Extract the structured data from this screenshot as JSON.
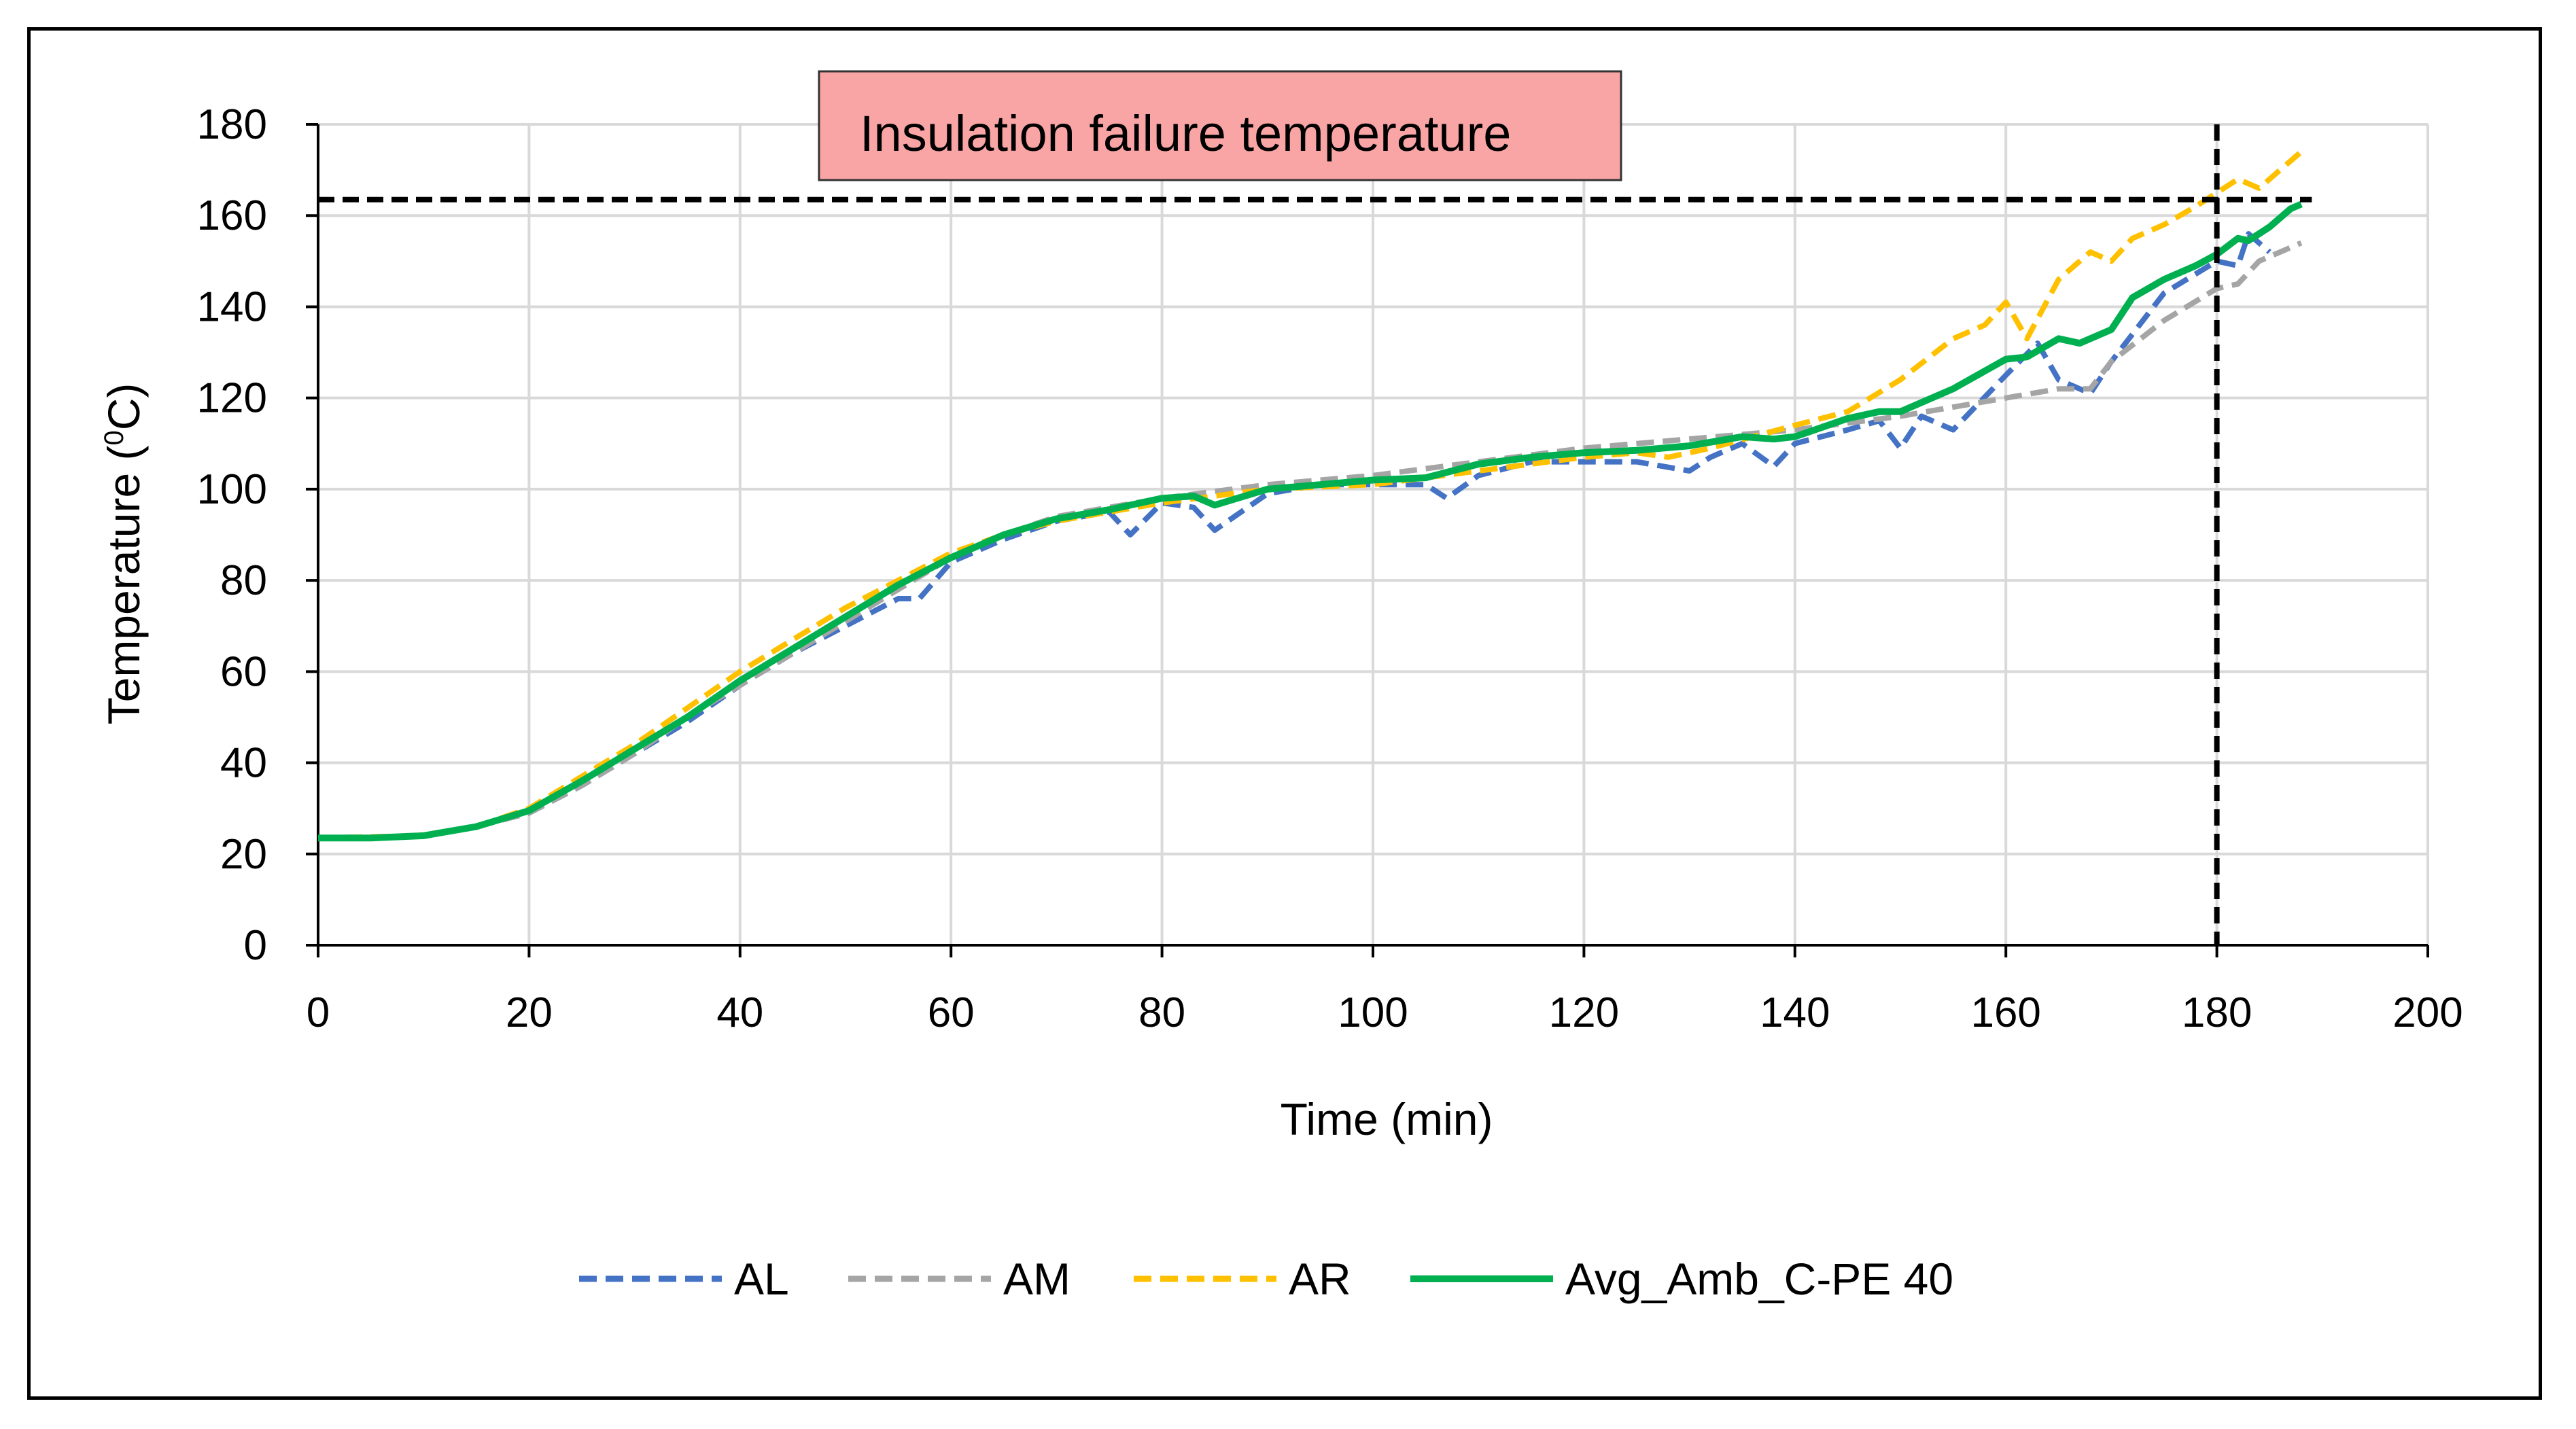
{
  "chart_data": {
    "type": "line",
    "title": "",
    "xlabel": "Time (min)",
    "ylabel": "Temperature (",
    "ylabel_sup": "0",
    "ylabel_tail": "C)",
    "xlim": [
      0,
      200
    ],
    "ylim": [
      0,
      180
    ],
    "xticks": [
      0,
      20,
      40,
      60,
      80,
      100,
      120,
      140,
      160,
      180,
      200
    ],
    "xtick_labels": [
      "0",
      "20",
      "40",
      "60",
      "80",
      "100",
      "120",
      "140",
      "160",
      "180",
      "200"
    ],
    "yticks": [
      0,
      20,
      40,
      60,
      80,
      100,
      120,
      140,
      160,
      180
    ],
    "ytick_labels": [
      "0",
      "20",
      "40",
      "60",
      "80",
      "100",
      "120",
      "140",
      "160",
      "180"
    ],
    "grid": true,
    "legend_position": "bottom",
    "annotation": {
      "text": "Insulation failure temperature",
      "failure_temperature": 163.5,
      "failure_time": 180,
      "fill_color": "#f9a5a5"
    },
    "series": [
      {
        "name": "AL",
        "color": "#4472c4",
        "style": "dashed",
        "x": [
          0,
          5,
          10,
          15,
          20,
          25,
          30,
          35,
          40,
          45,
          50,
          55,
          57,
          60,
          65,
          70,
          75,
          77,
          80,
          83,
          85,
          90,
          95,
          100,
          105,
          107,
          110,
          115,
          120,
          125,
          130,
          132,
          135,
          138,
          140,
          145,
          148,
          150,
          152,
          155,
          160,
          163,
          165,
          168,
          170,
          175,
          180,
          182,
          183,
          185
        ],
        "values": [
          23.5,
          23.5,
          24,
          26,
          29,
          35,
          42,
          49,
          57,
          64,
          70,
          76,
          76,
          84,
          89,
          93,
          95,
          90,
          97,
          96,
          91,
          99,
          101,
          101,
          101,
          98,
          103,
          106,
          106,
          106,
          104,
          107,
          110,
          105,
          110,
          113,
          115,
          109,
          116,
          113,
          125,
          132,
          124,
          121,
          128,
          143,
          150,
          149,
          156,
          152
        ]
      },
      {
        "name": "AM",
        "color": "#a5a5a5",
        "style": "dashed",
        "x": [
          0,
          10,
          15,
          20,
          25,
          30,
          35,
          40,
          45,
          50,
          55,
          60,
          65,
          70,
          75,
          80,
          90,
          100,
          110,
          120,
          130,
          140,
          150,
          155,
          160,
          165,
          168,
          170,
          175,
          180,
          182,
          184,
          186,
          188
        ],
        "values": [
          23.5,
          24,
          26,
          29,
          35,
          42,
          50,
          57,
          64,
          71,
          78,
          85,
          90,
          94,
          96,
          98,
          101,
          103,
          106,
          109,
          111,
          113,
          116,
          118,
          120,
          122,
          122,
          128,
          137,
          144,
          145,
          150,
          152,
          154
        ]
      },
      {
        "name": "AR",
        "color": "#ffc000",
        "style": "dashed",
        "x": [
          0,
          10,
          15,
          20,
          25,
          30,
          35,
          40,
          45,
          50,
          55,
          60,
          65,
          70,
          75,
          80,
          90,
          100,
          110,
          120,
          125,
          128,
          132,
          140,
          145,
          150,
          155,
          158,
          160,
          162,
          165,
          168,
          170,
          172,
          175,
          178,
          180,
          182,
          184,
          186,
          188
        ],
        "values": [
          23.5,
          24,
          26,
          30,
          37,
          44,
          52,
          60,
          67,
          74,
          80,
          86,
          90,
          93,
          95,
          97,
          100,
          101,
          104,
          107,
          108,
          107,
          109,
          114,
          117,
          124,
          133,
          136,
          141,
          133,
          146,
          152,
          150,
          155,
          158,
          162,
          165,
          168,
          166,
          170,
          174
        ]
      },
      {
        "name": "Avg_Amb_C-PE 40",
        "color": "#00b050",
        "style": "solid",
        "x": [
          0,
          5,
          10,
          15,
          20,
          25,
          30,
          35,
          40,
          45,
          50,
          55,
          60,
          65,
          70,
          75,
          80,
          83,
          85,
          90,
          95,
          100,
          105,
          110,
          115,
          120,
          125,
          130,
          135,
          138,
          140,
          145,
          148,
          150,
          155,
          160,
          162,
          165,
          167,
          170,
          172,
          175,
          178,
          180,
          182,
          183,
          185,
          187,
          188
        ],
        "values": [
          23.5,
          23.5,
          24,
          26,
          29.5,
          36,
          43,
          50,
          58,
          65,
          72,
          79,
          85,
          90,
          93.5,
          95.5,
          98,
          98.5,
          96.5,
          100,
          101,
          102,
          102.5,
          105.5,
          107,
          108,
          108.5,
          109.5,
          111.5,
          111,
          111.5,
          115.5,
          117,
          117,
          122,
          128.5,
          129,
          133,
          132,
          135,
          142,
          146,
          149,
          151.5,
          155,
          154.5,
          157.5,
          161.5,
          162.5
        ]
      }
    ]
  }
}
